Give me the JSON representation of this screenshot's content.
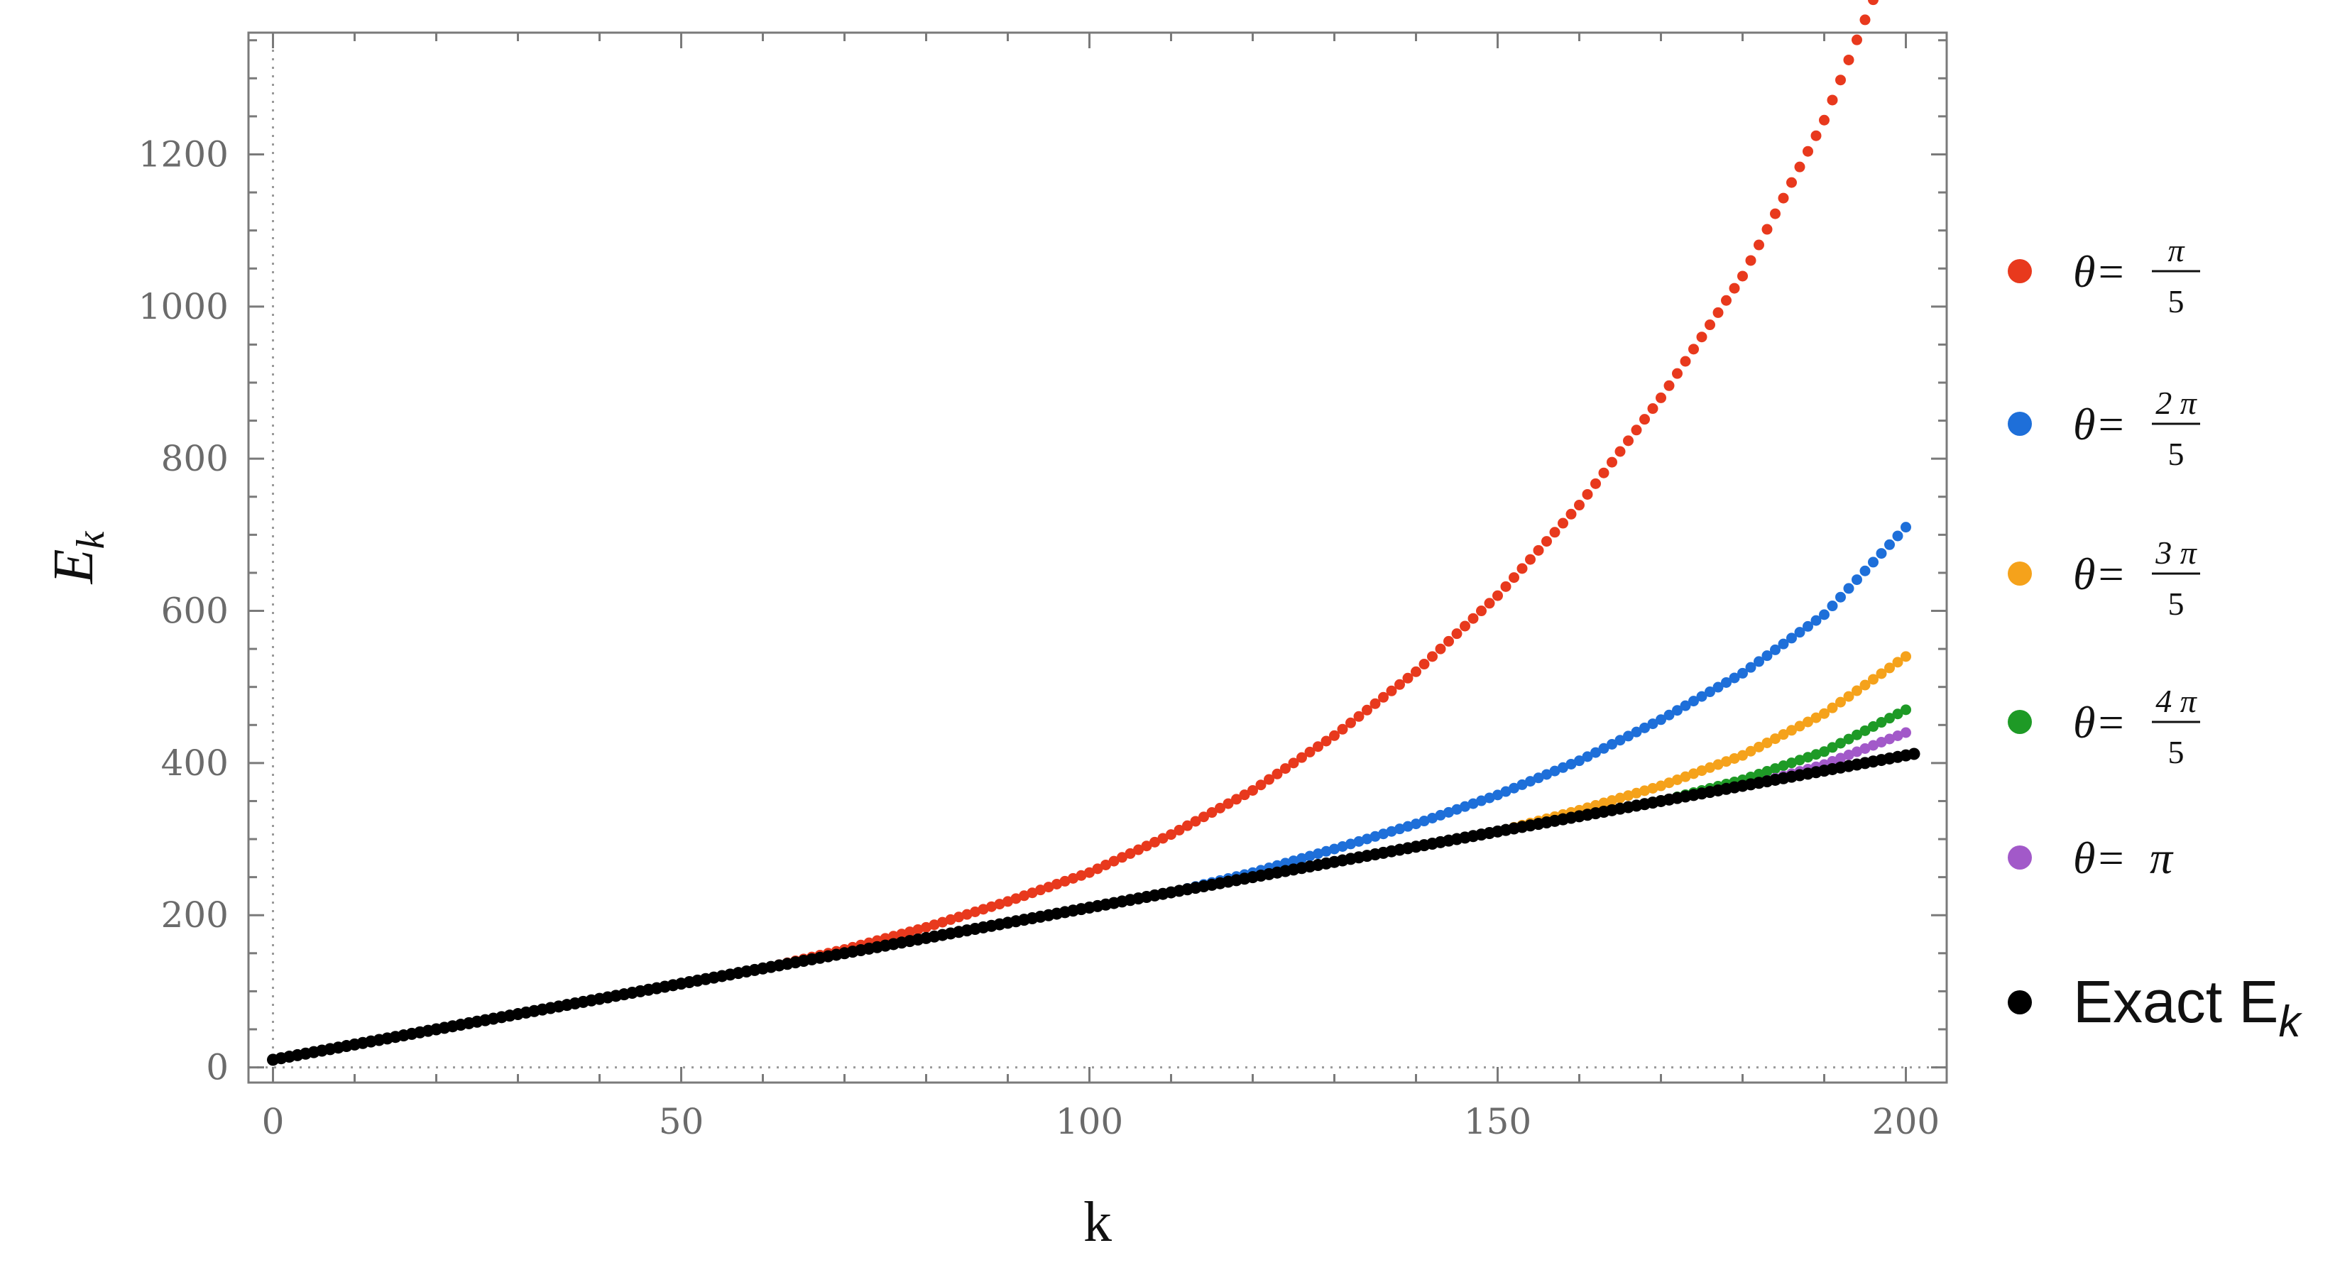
{
  "chart_data": {
    "type": "scatter",
    "title": "",
    "xlabel": "k",
    "ylabel": "E",
    "ylabel_subscript": "k",
    "xlim": [
      -3,
      205
    ],
    "ylim": [
      -20,
      1360
    ],
    "xticks": [
      0,
      50,
      100,
      150,
      200
    ],
    "yticks": [
      0,
      200,
      400,
      600,
      800,
      1000,
      1200
    ],
    "x_minor_step": 10,
    "y_minor_step": 50,
    "grid": false,
    "reference_lines": {
      "x": 0,
      "y": 0,
      "style": "dotted"
    },
    "legend_position": "right",
    "series": [
      {
        "name": "θ=π/5",
        "label_prefix": "θ=",
        "numerator": "π",
        "denominator": "5",
        "color": "#E8391D",
        "x_start": 1,
        "x_end": 200,
        "base_slope": 2,
        "base_intercept": 10,
        "deviation_points": [
          [
            60,
            0
          ],
          [
            70,
            5
          ],
          [
            80,
            14
          ],
          [
            90,
            28
          ],
          [
            100,
            46
          ],
          [
            110,
            76
          ],
          [
            120,
            114
          ],
          [
            130,
            166
          ],
          [
            140,
            230
          ],
          [
            150,
            310
          ],
          [
            160,
            409
          ],
          [
            170,
            530
          ],
          [
            180,
            670
          ],
          [
            190,
            855
          ],
          [
            198,
            1050
          ],
          [
            200,
            1100
          ]
        ]
      },
      {
        "name": "θ=2π/5",
        "label_prefix": "θ=",
        "numerator": "2 π",
        "denominator": "5",
        "color": "#1E6FD9",
        "x_start": 1,
        "x_end": 200,
        "base_slope": 2,
        "base_intercept": 10,
        "deviation_points": [
          [
            110,
            0
          ],
          [
            120,
            6
          ],
          [
            130,
            17
          ],
          [
            140,
            30
          ],
          [
            150,
            48
          ],
          [
            160,
            73
          ],
          [
            170,
            107
          ],
          [
            180,
            148
          ],
          [
            190,
            205
          ],
          [
            200,
            300
          ]
        ]
      },
      {
        "name": "θ=3π/5",
        "label_prefix": "θ=",
        "numerator": "3 π",
        "denominator": "5",
        "color": "#F5A21B",
        "x_start": 1,
        "x_end": 200,
        "base_slope": 2,
        "base_intercept": 10,
        "deviation_points": [
          [
            150,
            0
          ],
          [
            160,
            8
          ],
          [
            170,
            20
          ],
          [
            180,
            40
          ],
          [
            190,
            75
          ],
          [
            200,
            130
          ]
        ]
      },
      {
        "name": "θ=4π/5",
        "label_prefix": "θ=",
        "numerator": "4 π",
        "denominator": "5",
        "color": "#1E9A26",
        "x_start": 1,
        "x_end": 200,
        "base_slope": 2,
        "base_intercept": 10,
        "deviation_points": [
          [
            170,
            0
          ],
          [
            180,
            8
          ],
          [
            190,
            25
          ],
          [
            200,
            60
          ]
        ]
      },
      {
        "name": "θ=π",
        "label_prefix": "θ=",
        "numerator": "π",
        "denominator": "",
        "color": "#A259C9",
        "x_start": 1,
        "x_end": 200,
        "base_slope": 2,
        "base_intercept": 10,
        "deviation_points": [
          [
            182,
            0
          ],
          [
            190,
            8
          ],
          [
            200,
            30
          ]
        ]
      },
      {
        "name": "Exact E",
        "name_subscript": "k",
        "color": "#000000",
        "x_start": 0,
        "x_end": 201,
        "base_slope": 2,
        "base_intercept": 10,
        "deviation_points": []
      }
    ]
  }
}
